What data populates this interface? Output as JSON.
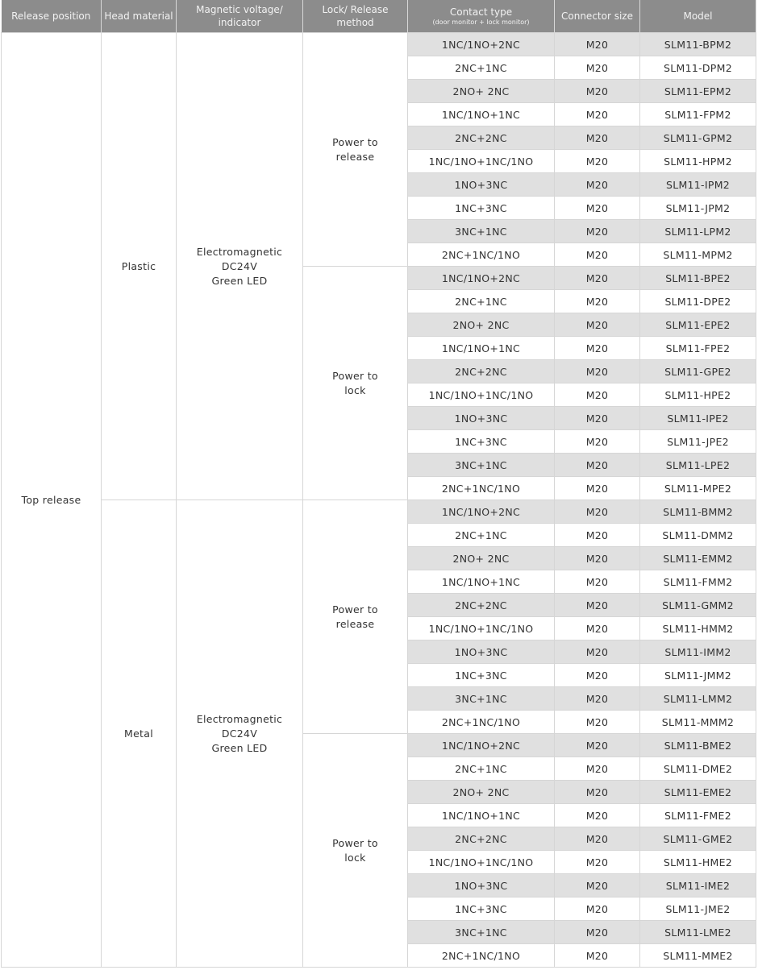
{
  "header": {
    "release_position": "Release position",
    "head_material": "Head material",
    "magnetic_voltage": "Magnetic voltage/ indicator",
    "lock_method": "Lock/ Release method",
    "contact_type": "Contact type",
    "contact_type_sub": "(door monitor + lock monitor)",
    "connector_size": "Connector size",
    "model": "Model"
  },
  "table": {
    "release_position": "Top release",
    "heads": [
      {
        "material": "Plastic",
        "voltage": [
          "Electromagnetic",
          "DC24V",
          "Green LED"
        ],
        "methods": [
          {
            "label": [
              "Power to",
              "release"
            ],
            "rows": [
              {
                "contact": "1NC/1NO+2NC",
                "size": "M20",
                "model": "SLM11-BPM2"
              },
              {
                "contact": "2NC+1NC",
                "size": "M20",
                "model": "SLM11-DPM2"
              },
              {
                "contact": "2NO+ 2NC",
                "size": "M20",
                "model": "SLM11-EPM2"
              },
              {
                "contact": "1NC/1NO+1NC",
                "size": "M20",
                "model": "SLM11-FPM2"
              },
              {
                "contact": "2NC+2NC",
                "size": "M20",
                "model": "SLM11-GPM2"
              },
              {
                "contact": "1NC/1NO+1NC/1NO",
                "size": "M20",
                "model": "SLM11-HPM2"
              },
              {
                "contact": "1NO+3NC",
                "size": "M20",
                "model": "SLM11-IPM2"
              },
              {
                "contact": "1NC+3NC",
                "size": "M20",
                "model": "SLM11-JPM2"
              },
              {
                "contact": "3NC+1NC",
                "size": "M20",
                "model": "SLM11-LPM2"
              },
              {
                "contact": "2NC+1NC/1NO",
                "size": "M20",
                "model": "SLM11-MPM2"
              }
            ]
          },
          {
            "label": [
              "Power to",
              "lock"
            ],
            "rows": [
              {
                "contact": "1NC/1NO+2NC",
                "size": "M20",
                "model": "SLM11-BPE2"
              },
              {
                "contact": "2NC+1NC",
                "size": "M20",
                "model": "SLM11-DPE2"
              },
              {
                "contact": "2NO+ 2NC",
                "size": "M20",
                "model": "SLM11-EPE2"
              },
              {
                "contact": "1NC/1NO+1NC",
                "size": "M20",
                "model": "SLM11-FPE2"
              },
              {
                "contact": "2NC+2NC",
                "size": "M20",
                "model": "SLM11-GPE2"
              },
              {
                "contact": "1NC/1NO+1NC/1NO",
                "size": "M20",
                "model": "SLM11-HPE2"
              },
              {
                "contact": "1NO+3NC",
                "size": "M20",
                "model": "SLM11-IPE2"
              },
              {
                "contact": "1NC+3NC",
                "size": "M20",
                "model": "SLM11-JPE2"
              },
              {
                "contact": "3NC+1NC",
                "size": "M20",
                "model": "SLM11-LPE2"
              },
              {
                "contact": "2NC+1NC/1NO",
                "size": "M20",
                "model": "SLM11-MPE2"
              }
            ]
          }
        ]
      },
      {
        "material": "Metal",
        "voltage": [
          "Electromagnetic",
          "DC24V",
          "Green LED"
        ],
        "methods": [
          {
            "label": [
              "Power to",
              "release"
            ],
            "rows": [
              {
                "contact": "1NC/1NO+2NC",
                "size": "M20",
                "model": "SLM11-BMM2"
              },
              {
                "contact": "2NC+1NC",
                "size": "M20",
                "model": "SLM11-DMM2"
              },
              {
                "contact": "2NO+ 2NC",
                "size": "M20",
                "model": "SLM11-EMM2"
              },
              {
                "contact": "1NC/1NO+1NC",
                "size": "M20",
                "model": "SLM11-FMM2"
              },
              {
                "contact": "2NC+2NC",
                "size": "M20",
                "model": "SLM11-GMM2"
              },
              {
                "contact": "1NC/1NO+1NC/1NO",
                "size": "M20",
                "model": "SLM11-HMM2"
              },
              {
                "contact": "1NO+3NC",
                "size": "M20",
                "model": "SLM11-IMM2"
              },
              {
                "contact": "1NC+3NC",
                "size": "M20",
                "model": "SLM11-JMM2"
              },
              {
                "contact": "3NC+1NC",
                "size": "M20",
                "model": "SLM11-LMM2"
              },
              {
                "contact": "2NC+1NC/1NO",
                "size": "M20",
                "model": "SLM11-MMM2"
              }
            ]
          },
          {
            "label": [
              "Power to",
              "lock"
            ],
            "rows": [
              {
                "contact": "1NC/1NO+2NC",
                "size": "M20",
                "model": "SLM11-BME2"
              },
              {
                "contact": "2NC+1NC",
                "size": "M20",
                "model": "SLM11-DME2"
              },
              {
                "contact": "2NO+ 2NC",
                "size": "M20",
                "model": "SLM11-EME2"
              },
              {
                "contact": "1NC/1NO+1NC",
                "size": "M20",
                "model": "SLM11-FME2"
              },
              {
                "contact": "2NC+2NC",
                "size": "M20",
                "model": "SLM11-GME2"
              },
              {
                "contact": "1NC/1NO+1NC/1NO",
                "size": "M20",
                "model": "SLM11-HME2"
              },
              {
                "contact": "1NO+3NC",
                "size": "M20",
                "model": "SLM11-IME2"
              },
              {
                "contact": "1NC+3NC",
                "size": "M20",
                "model": "SLM11-JME2"
              },
              {
                "contact": "3NC+1NC",
                "size": "M20",
                "model": "SLM11-LME2"
              },
              {
                "contact": "2NC+1NC/1NO",
                "size": "M20",
                "model": "SLM11-MME2"
              }
            ]
          }
        ]
      }
    ]
  }
}
